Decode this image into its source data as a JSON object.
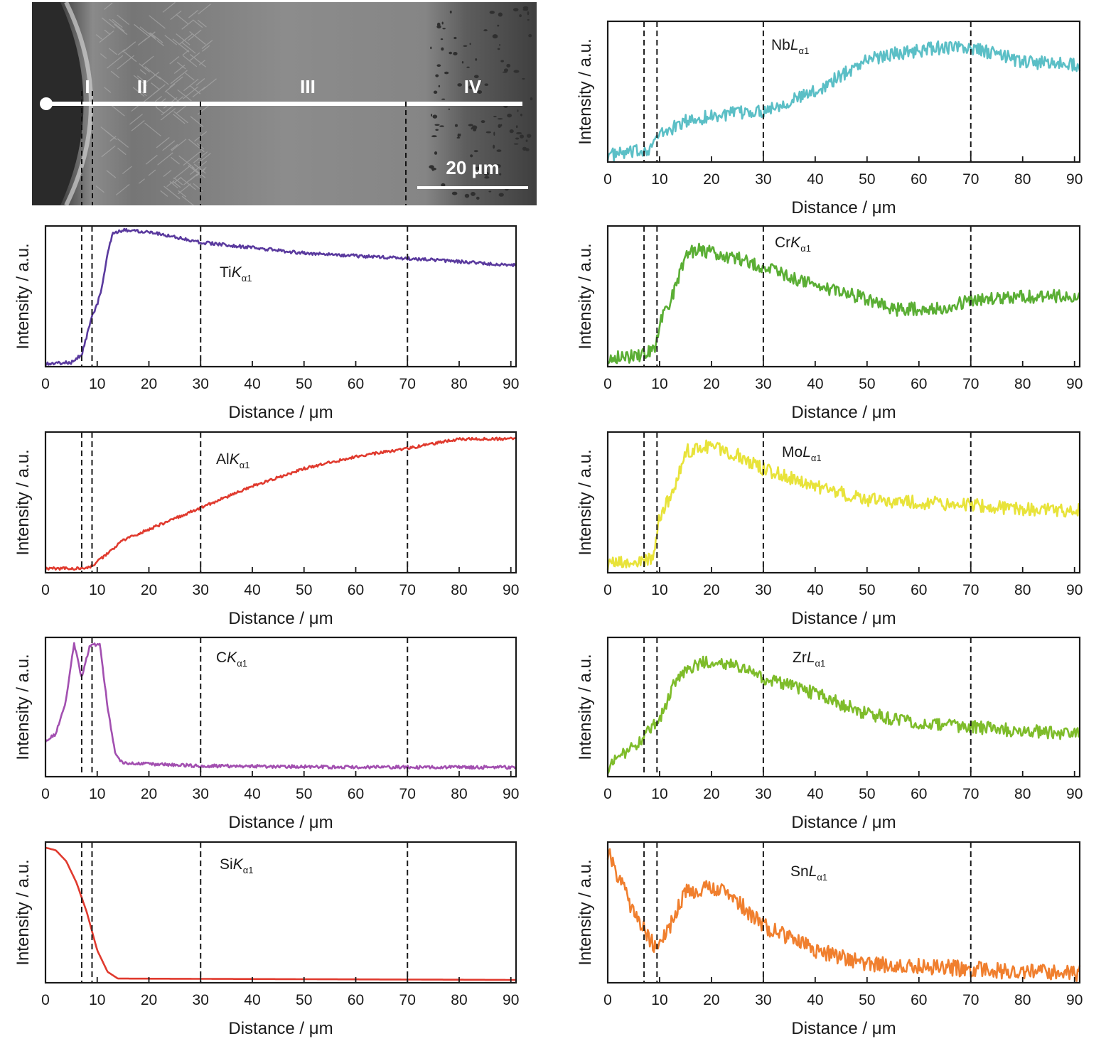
{
  "sem_image": {
    "regions": [
      "I",
      "II",
      "III",
      "IV"
    ],
    "scale_bar_label": "20 μm",
    "boundaries_um": [
      7,
      9,
      30,
      70
    ]
  },
  "chart_data": [
    {
      "type": "line",
      "element": "Nb",
      "line": "L",
      "sub": "α1",
      "color": "#5bbfc6",
      "xlabel": "Distance / μm",
      "ylabel": "Intensity / a.u.",
      "xlim": [
        0,
        91
      ],
      "xticks": [
        0,
        10,
        20,
        30,
        40,
        50,
        60,
        70,
        80,
        90
      ],
      "boundaries": [
        7,
        9.5,
        30,
        70
      ],
      "trend": [
        [
          0,
          0.03
        ],
        [
          5,
          0.05
        ],
        [
          8,
          0.08
        ],
        [
          10,
          0.18
        ],
        [
          15,
          0.28
        ],
        [
          20,
          0.32
        ],
        [
          30,
          0.36
        ],
        [
          40,
          0.5
        ],
        [
          45,
          0.62
        ],
        [
          50,
          0.74
        ],
        [
          55,
          0.78
        ],
        [
          65,
          0.83
        ],
        [
          70,
          0.82
        ],
        [
          75,
          0.78
        ],
        [
          80,
          0.72
        ],
        [
          91,
          0.7
        ]
      ],
      "noise": 0.05
    },
    {
      "type": "line",
      "element": "Ti",
      "line": "K",
      "sub": "α1",
      "color": "#5a3a9e",
      "xlabel": "Distance / μm",
      "ylabel": "Intensity / a.u.",
      "xlim": [
        0,
        91
      ],
      "xticks": [
        0,
        10,
        20,
        30,
        40,
        50,
        60,
        70,
        80,
        90
      ],
      "boundaries": [
        7,
        9,
        30,
        70
      ],
      "trend": [
        [
          0,
          0.0
        ],
        [
          5,
          0.01
        ],
        [
          7,
          0.07
        ],
        [
          9,
          0.35
        ],
        [
          10,
          0.44
        ],
        [
          11,
          0.58
        ],
        [
          12,
          0.82
        ],
        [
          13,
          0.96
        ],
        [
          15,
          0.99
        ],
        [
          20,
          0.98
        ],
        [
          30,
          0.9
        ],
        [
          50,
          0.82
        ],
        [
          70,
          0.78
        ],
        [
          91,
          0.73
        ]
      ],
      "noise": 0.012
    },
    {
      "type": "line",
      "element": "Cr",
      "line": "K",
      "sub": "α1",
      "color": "#5aae34",
      "xlabel": "Distance / μm",
      "ylabel": "Intensity / a.u.",
      "xlim": [
        0,
        91
      ],
      "xticks": [
        0,
        10,
        20,
        30,
        40,
        50,
        60,
        70,
        80,
        90
      ],
      "boundaries": [
        7,
        9.5,
        30,
        70
      ],
      "trend": [
        [
          0,
          0.05
        ],
        [
          6,
          0.06
        ],
        [
          9,
          0.1
        ],
        [
          10,
          0.3
        ],
        [
          12,
          0.45
        ],
        [
          15,
          0.8
        ],
        [
          17,
          0.85
        ],
        [
          25,
          0.78
        ],
        [
          30,
          0.72
        ],
        [
          40,
          0.58
        ],
        [
          50,
          0.48
        ],
        [
          55,
          0.4
        ],
        [
          65,
          0.42
        ],
        [
          70,
          0.47
        ],
        [
          80,
          0.5
        ],
        [
          91,
          0.5
        ]
      ],
      "noise": 0.05
    },
    {
      "type": "line",
      "element": "Al",
      "line": "K",
      "sub": "α1",
      "color": "#e03a2e",
      "xlabel": "Distance / μm",
      "ylabel": "Intensity / a.u.",
      "xlim": [
        0,
        91
      ],
      "xticks": [
        0,
        10,
        20,
        30,
        40,
        50,
        60,
        70,
        80,
        90
      ],
      "boundaries": [
        7,
        9,
        30,
        70
      ],
      "trend": [
        [
          0,
          0.01
        ],
        [
          8,
          0.01
        ],
        [
          9,
          0.03
        ],
        [
          12,
          0.12
        ],
        [
          15,
          0.22
        ],
        [
          20,
          0.3
        ],
        [
          25,
          0.38
        ],
        [
          30,
          0.46
        ],
        [
          40,
          0.62
        ],
        [
          50,
          0.75
        ],
        [
          60,
          0.84
        ],
        [
          70,
          0.9
        ],
        [
          80,
          0.97
        ],
        [
          91,
          0.97
        ]
      ],
      "noise": 0.01
    },
    {
      "type": "line",
      "element": "Mo",
      "line": "L",
      "sub": "α1",
      "color": "#e8e33a",
      "xlabel": "Distance / μm",
      "ylabel": "Intensity / a.u.",
      "xlim": [
        0,
        91
      ],
      "xticks": [
        0,
        10,
        20,
        30,
        40,
        50,
        60,
        70,
        80,
        90
      ],
      "boundaries": [
        7,
        9.5,
        30,
        70
      ],
      "trend": [
        [
          0,
          0.05
        ],
        [
          6,
          0.05
        ],
        [
          9,
          0.1
        ],
        [
          10,
          0.4
        ],
        [
          13,
          0.6
        ],
        [
          15,
          0.88
        ],
        [
          20,
          0.92
        ],
        [
          25,
          0.85
        ],
        [
          30,
          0.75
        ],
        [
          40,
          0.62
        ],
        [
          50,
          0.52
        ],
        [
          60,
          0.5
        ],
        [
          70,
          0.48
        ],
        [
          80,
          0.45
        ],
        [
          91,
          0.44
        ]
      ],
      "noise": 0.05
    },
    {
      "type": "line",
      "element": "C",
      "line": "K",
      "sub": "α1",
      "color": "#a24fb0",
      "xlabel": "Distance / μm",
      "ylabel": "Intensity / a.u.",
      "xlim": [
        0,
        91
      ],
      "xticks": [
        0,
        10,
        20,
        30,
        40,
        50,
        60,
        70,
        80,
        90
      ],
      "boundaries": [
        7,
        9,
        30,
        70
      ],
      "trend": [
        [
          0,
          0.25
        ],
        [
          2,
          0.3
        ],
        [
          4,
          0.55
        ],
        [
          5.5,
          0.98
        ],
        [
          7,
          0.72
        ],
        [
          8.5,
          0.95
        ],
        [
          10.5,
          0.98
        ],
        [
          12,
          0.5
        ],
        [
          13.5,
          0.15
        ],
        [
          15,
          0.08
        ],
        [
          30,
          0.06
        ],
        [
          60,
          0.05
        ],
        [
          91,
          0.05
        ]
      ],
      "noise": 0.012
    },
    {
      "type": "line",
      "element": "Zr",
      "line": "L",
      "sub": "α1",
      "color": "#7ebc2a",
      "xlabel": "Distance / μm",
      "ylabel": "Intensity / a.u.",
      "xlim": [
        0,
        91
      ],
      "xticks": [
        0,
        10,
        20,
        30,
        40,
        50,
        60,
        70,
        80,
        90
      ],
      "boundaries": [
        7,
        9.5,
        30,
        70
      ],
      "trend": [
        [
          0,
          0.05
        ],
        [
          5,
          0.2
        ],
        [
          10,
          0.4
        ],
        [
          13,
          0.7
        ],
        [
          15,
          0.78
        ],
        [
          20,
          0.85
        ],
        [
          25,
          0.8
        ],
        [
          30,
          0.72
        ],
        [
          40,
          0.6
        ],
        [
          50,
          0.45
        ],
        [
          60,
          0.38
        ],
        [
          70,
          0.35
        ],
        [
          80,
          0.32
        ],
        [
          91,
          0.3
        ]
      ],
      "noise": 0.05
    },
    {
      "type": "line",
      "element": "Si",
      "line": "K",
      "sub": "α1",
      "color": "#e03a2e",
      "xlabel": "Distance / μm",
      "ylabel": "Intensity / a.u.",
      "xlim": [
        0,
        91
      ],
      "xticks": [
        0,
        10,
        20,
        30,
        40,
        50,
        60,
        70,
        80,
        90
      ],
      "boundaries": [
        7,
        9,
        30,
        70
      ],
      "trend": [
        [
          0,
          0.98
        ],
        [
          2,
          0.96
        ],
        [
          4,
          0.88
        ],
        [
          6,
          0.72
        ],
        [
          8,
          0.5
        ],
        [
          10,
          0.22
        ],
        [
          12,
          0.06
        ],
        [
          14,
          0.01
        ],
        [
          91,
          0.0
        ]
      ],
      "noise": 0.0
    },
    {
      "type": "line",
      "element": "Sn",
      "line": "L",
      "sub": "α1",
      "color": "#f07f2e",
      "xlabel": "Distance / μm",
      "ylabel": "Intensity / a.u.",
      "xlim": [
        0,
        91
      ],
      "xticks": [
        0,
        10,
        20,
        30,
        40,
        50,
        60,
        70,
        80,
        90
      ],
      "boundaries": [
        7,
        9.5,
        30,
        70
      ],
      "trend": [
        [
          0,
          0.95
        ],
        [
          5,
          0.5
        ],
        [
          9,
          0.25
        ],
        [
          12,
          0.4
        ],
        [
          15,
          0.65
        ],
        [
          20,
          0.7
        ],
        [
          25,
          0.58
        ],
        [
          30,
          0.4
        ],
        [
          40,
          0.22
        ],
        [
          50,
          0.12
        ],
        [
          60,
          0.1
        ],
        [
          70,
          0.08
        ],
        [
          80,
          0.06
        ],
        [
          91,
          0.05
        ]
      ],
      "noise": 0.06
    }
  ]
}
